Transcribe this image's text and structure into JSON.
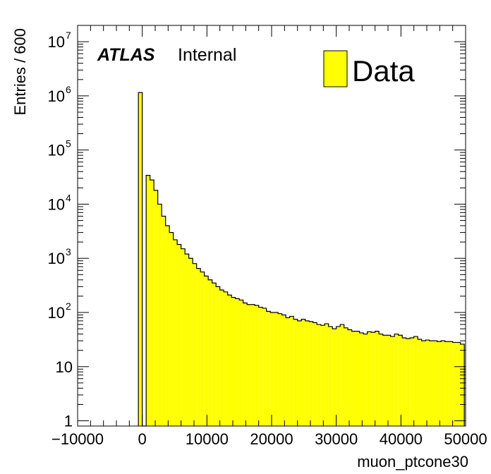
{
  "chart_data": {
    "type": "histogram",
    "title": "",
    "xlabel": "muon_ptcone30",
    "ylabel": "Entries / 600",
    "xlim": [
      -10000,
      50000
    ],
    "ylim": [
      0.8,
      20000000
    ],
    "y_scale": "log",
    "x_ticks": [
      -10000,
      0,
      10000,
      20000,
      30000,
      40000,
      50000
    ],
    "x_tick_labels": [
      "−10000",
      "0",
      "10000",
      "20000",
      "30000",
      "40000",
      "50000"
    ],
    "y_major_ticks": [
      {
        "value": 1,
        "base": "1",
        "exp": ""
      },
      {
        "value": 10,
        "base": "10",
        "exp": ""
      },
      {
        "value": 100,
        "base": "10",
        "exp": "2"
      },
      {
        "value": 1000,
        "base": "10",
        "exp": "3"
      },
      {
        "value": 10000,
        "base": "10",
        "exp": "4"
      },
      {
        "value": 100000,
        "base": "10",
        "exp": "5"
      },
      {
        "value": 1000000,
        "base": "10",
        "exp": "6"
      },
      {
        "value": 10000000,
        "base": "10",
        "exp": "7"
      }
    ],
    "bin_width": 600,
    "fill_color": "#ffff00",
    "line_color": "#000000",
    "legend": {
      "position": "top-right",
      "entries": [
        "Data"
      ]
    },
    "series": [
      {
        "name": "Data",
        "x_low": [
          -600,
          0,
          600,
          1200,
          1800,
          2400,
          3000,
          3600,
          4200,
          4800,
          5400,
          6000,
          6600,
          7200,
          7800,
          8400,
          9000,
          9600,
          10200,
          10800,
          11400,
          12000,
          12600,
          13200,
          13800,
          14400,
          15000,
          15600,
          16200,
          16800,
          17400,
          18000,
          18600,
          19200,
          19800,
          20400,
          21000,
          21600,
          22200,
          22800,
          23400,
          24000,
          24600,
          25200,
          25800,
          26400,
          27000,
          27600,
          28200,
          28800,
          29400,
          30000,
          30600,
          31200,
          31800,
          32400,
          33000,
          33600,
          34200,
          34800,
          35400,
          36000,
          36600,
          37200,
          37800,
          38400,
          39000,
          39600,
          40200,
          40800,
          41400,
          42000,
          42600,
          43200,
          43800,
          44400,
          45000,
          45600,
          46200,
          46800,
          47400,
          48000,
          48600,
          49200
        ],
        "values": [
          1150000,
          0,
          34000,
          28000,
          18000,
          10000,
          6000,
          4000,
          3000,
          2200,
          1800,
          1500,
          1200,
          1000,
          800,
          650,
          560,
          470,
          400,
          350,
          300,
          260,
          240,
          210,
          190,
          180,
          170,
          150,
          140,
          140,
          135,
          125,
          120,
          105,
          100,
          100,
          95,
          90,
          80,
          85,
          75,
          70,
          75,
          70,
          68,
          65,
          60,
          58,
          62,
          55,
          50,
          55,
          60,
          52,
          48,
          45,
          45,
          42,
          40,
          44,
          43,
          45,
          40,
          38,
          38,
          36,
          40,
          38,
          34,
          33,
          34,
          36,
          32,
          30,
          31,
          30,
          30,
          29,
          30,
          29,
          29,
          28,
          28,
          26
        ]
      }
    ],
    "annotations": {
      "atlas": "ATLAS",
      "status": "Internal"
    }
  }
}
